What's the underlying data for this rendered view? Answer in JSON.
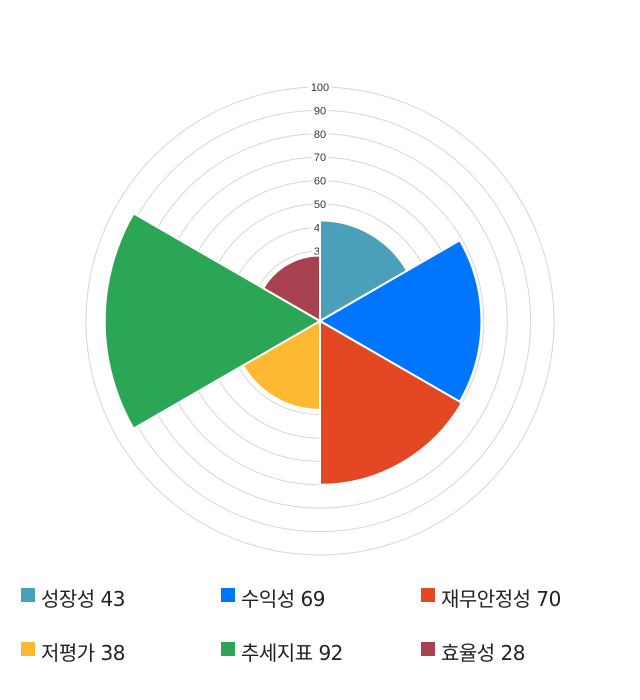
{
  "chart_data": {
    "type": "polarArea",
    "categories": [
      "성장성",
      "수익성",
      "재무안정성",
      "저평가",
      "추세지표",
      "효율성"
    ],
    "values": [
      43,
      69,
      70,
      38,
      92,
      28
    ],
    "colors": [
      "#4aa0bb",
      "#0076ff",
      "#e34723",
      "#ffb832",
      "#2aa654",
      "#a84150"
    ],
    "rlim": [
      0,
      100
    ],
    "ticks": [
      100,
      90,
      80,
      70,
      60,
      50,
      40,
      30
    ],
    "grid": true,
    "legend_position": "bottom",
    "legend": [
      {
        "label": "성장성 43"
      },
      {
        "label": "수익성 69"
      },
      {
        "label": "재무안정성 70"
      },
      {
        "label": "저평가 38"
      },
      {
        "label": "추세지표 92"
      },
      {
        "label": "효율성 28"
      }
    ]
  }
}
